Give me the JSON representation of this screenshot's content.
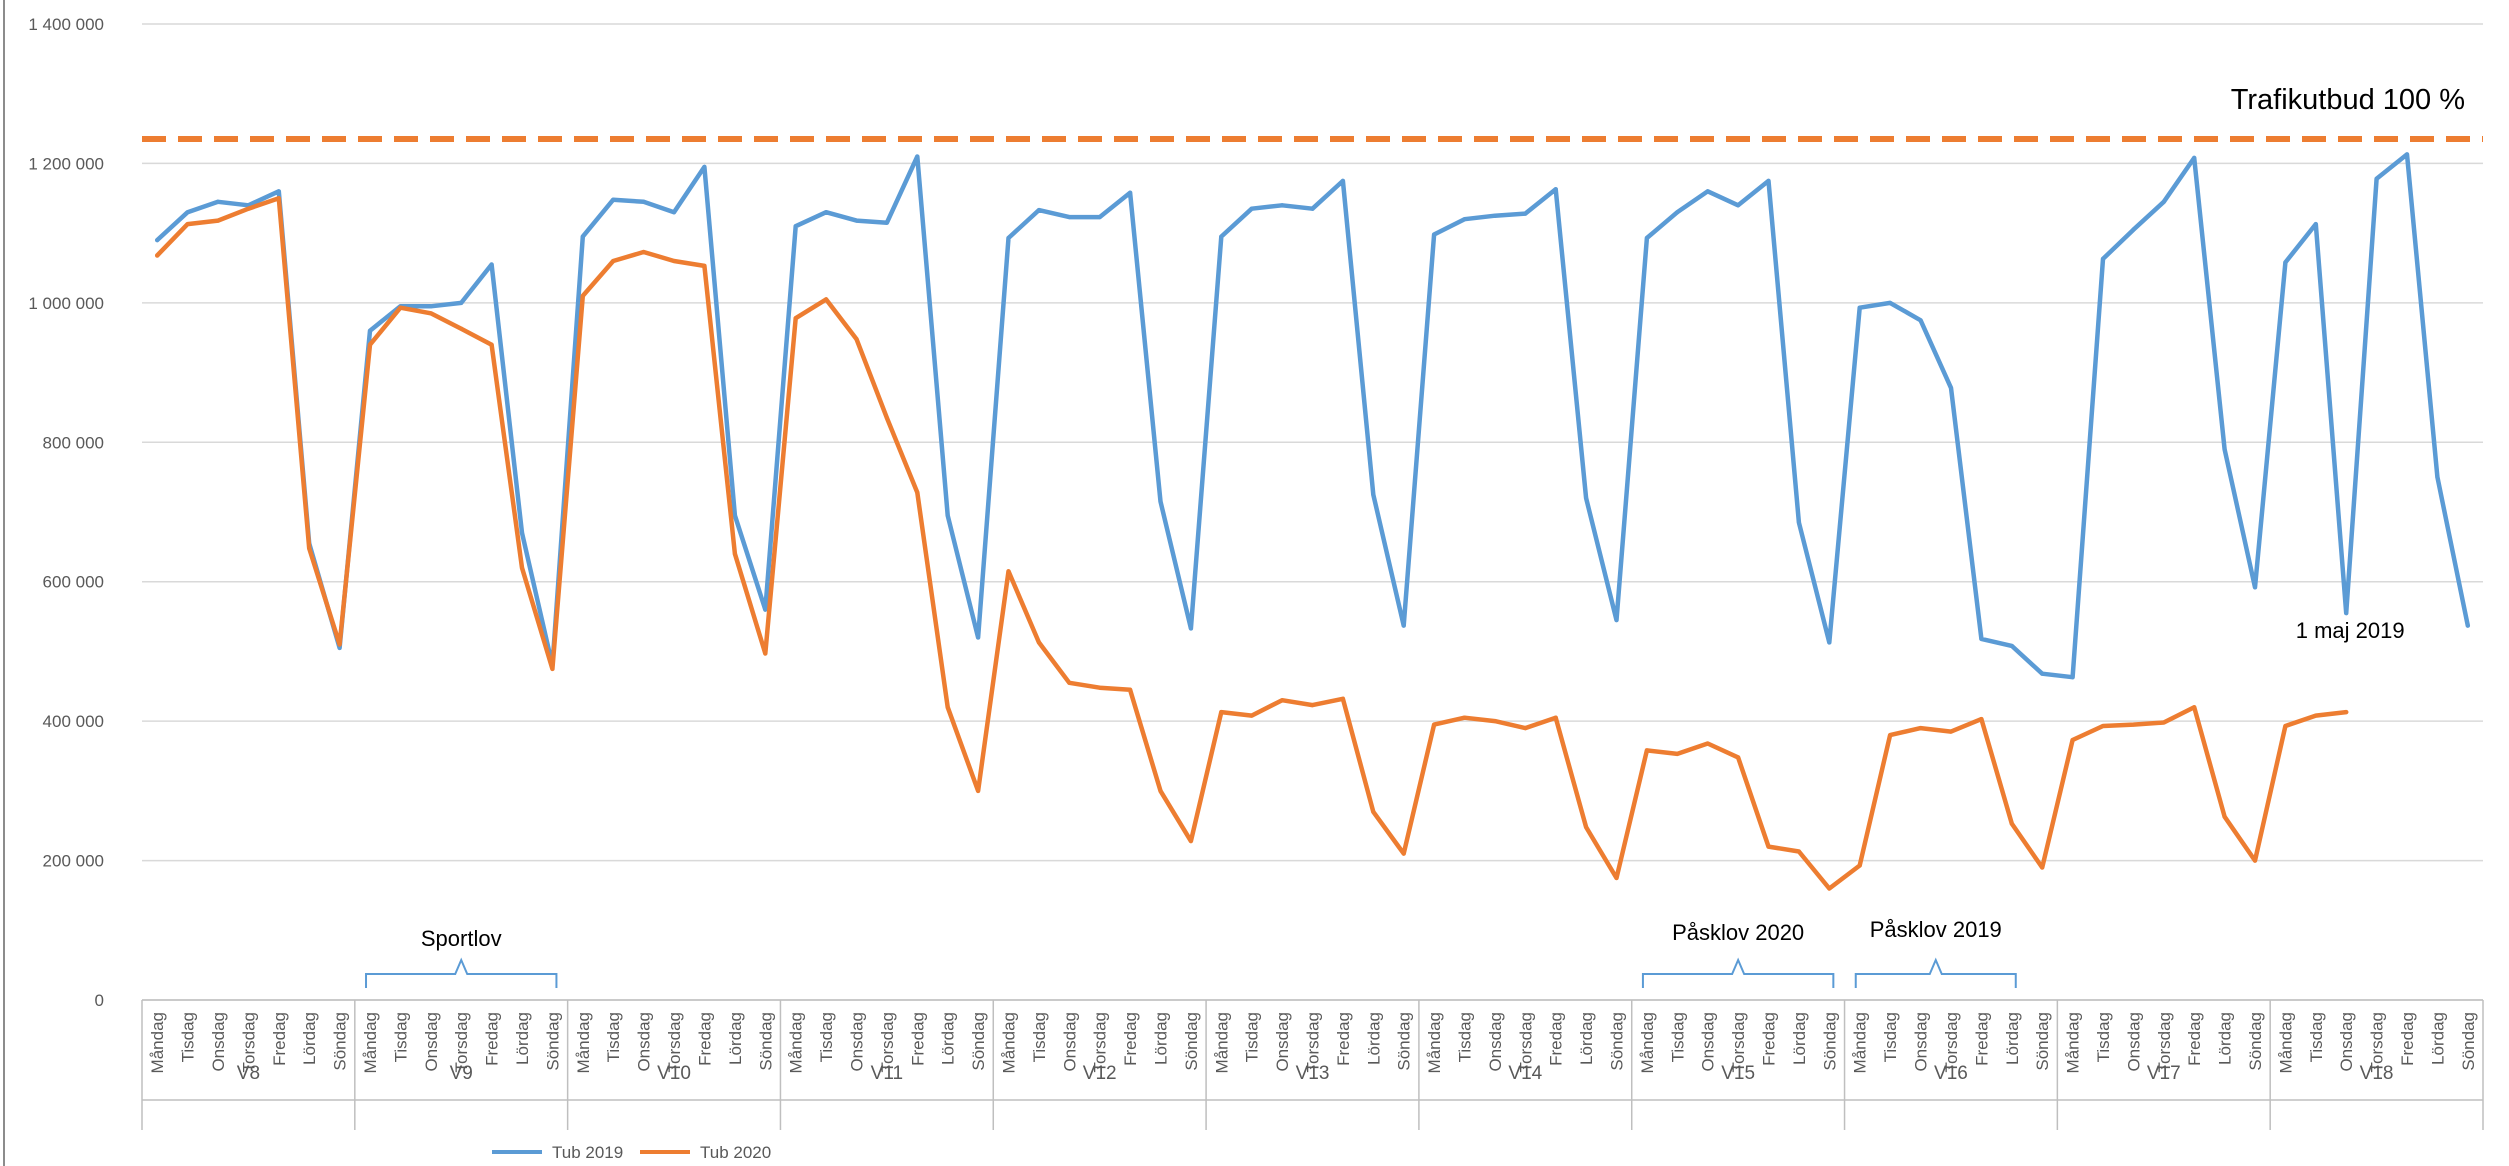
{
  "chart_data": {
    "type": "line",
    "title": "",
    "xlabel": "",
    "ylabel": "",
    "ylim": [
      0,
      1400000
    ],
    "yticks": [
      0,
      200000,
      400000,
      600000,
      800000,
      1000000,
      1200000,
      1400000
    ],
    "ytick_labels": [
      "0",
      "200 000",
      "400 000",
      "600 000",
      "800 000",
      "1 000 000",
      "1 200 000",
      "1 400 000"
    ],
    "grid": true,
    "legend_position": "bottom-left",
    "day_labels": [
      "Måndag",
      "Tisdag",
      "Onsdag",
      "Torsdag",
      "Fredag",
      "Lördag",
      "Söndag"
    ],
    "weeks": [
      "V8",
      "V9",
      "V10",
      "V11",
      "V12",
      "V13",
      "V14",
      "V15",
      "V16",
      "V17",
      "V18"
    ],
    "series": [
      {
        "name": "Tub 2019",
        "color": "#5B9BD5",
        "values": [
          1090000,
          1130000,
          1145000,
          1140000,
          1160000,
          655000,
          505000,
          960000,
          995000,
          995000,
          1000000,
          1055000,
          670000,
          480000,
          1095000,
          1148000,
          1145000,
          1130000,
          1195000,
          695000,
          560000,
          1110000,
          1130000,
          1118000,
          1115000,
          1210000,
          695000,
          520000,
          1093000,
          1133000,
          1123000,
          1123000,
          1158000,
          715000,
          533000,
          1095000,
          1135000,
          1140000,
          1135000,
          1175000,
          725000,
          537000,
          1098000,
          1120000,
          1125000,
          1128000,
          1163000,
          720000,
          545000,
          1093000,
          1130000,
          1160000,
          1140000,
          1175000,
          685000,
          513000,
          993000,
          1000000,
          975000,
          878000,
          518000,
          508000,
          468000,
          463000,
          1063000,
          1105000,
          1145000,
          1208000,
          790000,
          592000,
          1058000,
          1113000,
          555000,
          1178000,
          1213000,
          750000,
          537000
        ]
      },
      {
        "name": "Tub 2020",
        "color": "#ED7D31",
        "values": [
          1068000,
          1113000,
          1118000,
          1135000,
          1150000,
          648000,
          510000,
          940000,
          993000,
          985000,
          963000,
          940000,
          620000,
          475000,
          1010000,
          1060000,
          1073000,
          1060000,
          1053000,
          640000,
          497000,
          978000,
          1005000,
          948000,
          835000,
          728000,
          420000,
          300000,
          615000,
          513000,
          455000,
          448000,
          445000,
          300000,
          228000,
          413000,
          408000,
          430000,
          423000,
          432000,
          270000,
          210000,
          395000,
          405000,
          400000,
          390000,
          405000,
          248000,
          175000,
          358000,
          353000,
          368000,
          348000,
          220000,
          213000,
          160000,
          193000,
          380000,
          390000,
          385000,
          403000,
          253000,
          190000,
          373000,
          393000,
          395000,
          398000,
          420000,
          263000,
          200000,
          393000,
          408000,
          413000
        ]
      }
    ],
    "reference_line": {
      "label": "Trafikutbud 100 %",
      "value": 1235000,
      "color": "#ED7D31"
    },
    "annotations": {
      "sportlov": "Sportlov",
      "paskLov2020": "Påsklov 2020",
      "paskLov2019": "Påsklov 2019",
      "first_may": "1 maj 2019"
    }
  }
}
